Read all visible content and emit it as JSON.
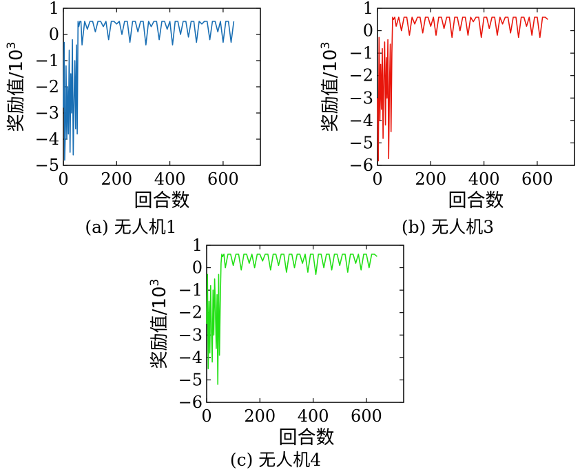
{
  "chart_data": [
    {
      "id": "a",
      "type": "line",
      "caption": "(a) 无人机1",
      "xlabel": "回合数",
      "ylabel": "奖励值/10",
      "ylabel_sup": "3",
      "xlim": [
        0,
        740
      ],
      "ylim": [
        -5,
        1
      ],
      "xticks": [
        0,
        200,
        400,
        600
      ],
      "yticks": [
        -5,
        -4,
        -3,
        -2,
        -1,
        0,
        1
      ],
      "ytick_labels": [
        "−5",
        "−4",
        "−3",
        "−2",
        "−1",
        "0",
        "1"
      ],
      "color": "#1a6fb4",
      "grid": false,
      "series": [
        {
          "x": [
            0,
            3,
            5,
            8,
            10,
            13,
            16,
            19,
            22,
            25,
            28,
            31,
            34,
            37,
            40,
            43,
            46,
            49,
            52,
            55,
            58,
            62,
            66,
            70,
            80,
            90,
            100,
            110,
            120,
            130,
            140,
            150,
            160,
            170,
            180,
            190,
            200,
            210,
            220,
            230,
            240,
            250,
            260,
            270,
            280,
            290,
            300,
            310,
            320,
            330,
            340,
            350,
            360,
            370,
            380,
            390,
            400,
            410,
            420,
            430,
            440,
            450,
            460,
            470,
            480,
            490,
            500,
            510,
            520,
            530,
            540,
            550,
            560,
            570,
            580,
            590,
            600,
            610,
            620,
            630,
            640
          ],
          "y": [
            -2.8,
            -0.3,
            -4.8,
            -3.5,
            -1.2,
            -4.0,
            -2.0,
            -3.8,
            -0.6,
            -4.5,
            -1.5,
            -3.0,
            -0.2,
            -4.6,
            -2.5,
            -1.0,
            -3.6,
            -0.4,
            -3.8,
            0.5,
            0.3,
            0.5,
            0.5,
            -0.4,
            0.5,
            0.2,
            0.5,
            0.5,
            0.1,
            0.5,
            0.5,
            0.3,
            0.5,
            -0.2,
            0.5,
            0.5,
            0.4,
            0.5,
            0.0,
            0.5,
            0.5,
            -0.3,
            0.5,
            0.5,
            0.1,
            0.5,
            0.5,
            -0.4,
            0.5,
            0.3,
            0.5,
            0.5,
            -0.2,
            0.5,
            0.5,
            0.2,
            0.5,
            -0.4,
            0.5,
            0.5,
            0.0,
            0.5,
            0.5,
            -0.1,
            0.5,
            0.5,
            -0.3,
            0.5,
            0.4,
            0.5,
            0.5,
            -0.2,
            0.5,
            0.5,
            0.1,
            0.5,
            -0.3,
            0.5,
            0.5,
            -0.3,
            0.5
          ]
        }
      ]
    },
    {
      "id": "b",
      "type": "line",
      "caption": "(b) 无人机3",
      "xlabel": "回合数",
      "ylabel": "奖励值/10",
      "ylabel_sup": "3",
      "xlim": [
        0,
        740
      ],
      "ylim": [
        -6,
        1
      ],
      "xticks": [
        0,
        200,
        400,
        600
      ],
      "yticks": [
        -6,
        -5,
        -4,
        -3,
        -2,
        -1,
        0,
        1
      ],
      "ytick_labels": [
        "−6",
        "−5",
        "−4",
        "−3",
        "−2",
        "−1",
        "0",
        "1"
      ],
      "color": "#e8160c",
      "grid": false,
      "series": [
        {
          "x": [
            0,
            3,
            6,
            9,
            12,
            15,
            18,
            21,
            24,
            27,
            30,
            33,
            36,
            39,
            42,
            45,
            48,
            51,
            54,
            57,
            60,
            65,
            70,
            80,
            90,
            100,
            110,
            120,
            130,
            140,
            150,
            160,
            170,
            180,
            190,
            200,
            210,
            220,
            230,
            240,
            250,
            260,
            270,
            280,
            290,
            300,
            310,
            320,
            330,
            340,
            350,
            360,
            370,
            380,
            390,
            400,
            410,
            420,
            430,
            440,
            450,
            460,
            470,
            480,
            490,
            500,
            510,
            520,
            530,
            540,
            550,
            560,
            570,
            580,
            590,
            600,
            610,
            620,
            630,
            640
          ],
          "y": [
            -3.0,
            -5.8,
            -0.3,
            -4.0,
            -1.5,
            -3.5,
            -0.8,
            -4.8,
            -2.0,
            -0.5,
            -4.2,
            -1.2,
            -3.0,
            -0.4,
            -5.7,
            -2.5,
            -0.6,
            -4.5,
            -1.0,
            0.6,
            0.5,
            0.6,
            0.2,
            0.6,
            0.0,
            0.6,
            0.6,
            -0.2,
            0.6,
            0.3,
            0.6,
            0.6,
            -0.1,
            0.6,
            0.6,
            0.2,
            0.6,
            -0.2,
            0.6,
            0.6,
            0.1,
            0.6,
            0.6,
            -0.3,
            0.6,
            0.6,
            0.0,
            0.6,
            0.6,
            -0.2,
            0.6,
            0.4,
            0.6,
            0.6,
            -0.3,
            0.6,
            0.6,
            0.1,
            0.6,
            0.6,
            -0.2,
            0.6,
            0.3,
            0.6,
            0.6,
            -0.1,
            0.6,
            0.6,
            -0.3,
            0.6,
            0.6,
            0.2,
            0.6,
            -0.2,
            0.6,
            0.6,
            -0.3,
            0.6,
            0.6,
            0.5
          ]
        }
      ]
    },
    {
      "id": "c",
      "type": "line",
      "caption": "(c) 无人机4",
      "xlabel": "回合数",
      "ylabel": "奖励值/10",
      "ylabel_sup": "3",
      "xlim": [
        0,
        740
      ],
      "ylim": [
        -6,
        1
      ],
      "xticks": [
        0,
        200,
        400,
        600
      ],
      "yticks": [
        -6,
        -5,
        -4,
        -3,
        -2,
        -1,
        0,
        1
      ],
      "ytick_labels": [
        "−6",
        "−5",
        "−4",
        "−3",
        "−2",
        "−1",
        "0",
        "1"
      ],
      "color": "#22e015",
      "grid": false,
      "series": [
        {
          "x": [
            0,
            3,
            6,
            9,
            12,
            15,
            18,
            21,
            24,
            27,
            30,
            33,
            36,
            39,
            42,
            45,
            48,
            51,
            54,
            57,
            60,
            65,
            70,
            80,
            90,
            100,
            110,
            120,
            130,
            140,
            150,
            160,
            170,
            180,
            190,
            200,
            210,
            220,
            230,
            240,
            250,
            260,
            270,
            280,
            290,
            300,
            310,
            320,
            330,
            340,
            350,
            360,
            370,
            380,
            390,
            400,
            410,
            420,
            430,
            440,
            450,
            460,
            470,
            480,
            490,
            500,
            510,
            520,
            530,
            540,
            550,
            560,
            570,
            580,
            590,
            600,
            610,
            620,
            630,
            640
          ],
          "y": [
            -2.5,
            -0.3,
            -4.5,
            -1.5,
            -3.8,
            -0.8,
            -2.8,
            -4.2,
            -1.0,
            -3.0,
            -0.5,
            -2.0,
            -3.6,
            -1.2,
            -5.2,
            -0.3,
            -3.9,
            -1.6,
            0.2,
            0.6,
            0.5,
            0.6,
            0.0,
            0.6,
            0.6,
            0.1,
            0.6,
            0.6,
            -0.1,
            0.6,
            0.6,
            0.2,
            0.6,
            0.0,
            0.6,
            0.6,
            0.3,
            0.6,
            0.6,
            -0.1,
            0.6,
            0.6,
            0.1,
            0.6,
            0.6,
            -0.2,
            0.6,
            0.6,
            0.0,
            0.6,
            0.6,
            0.2,
            0.6,
            -0.2,
            0.6,
            0.6,
            -0.3,
            0.6,
            0.6,
            0.0,
            0.6,
            0.6,
            -0.1,
            0.6,
            0.6,
            0.1,
            0.6,
            0.6,
            -0.2,
            0.6,
            0.6,
            0.2,
            0.6,
            -0.1,
            0.6,
            0.6,
            0.0,
            0.6,
            0.6,
            0.5
          ]
        }
      ]
    }
  ]
}
